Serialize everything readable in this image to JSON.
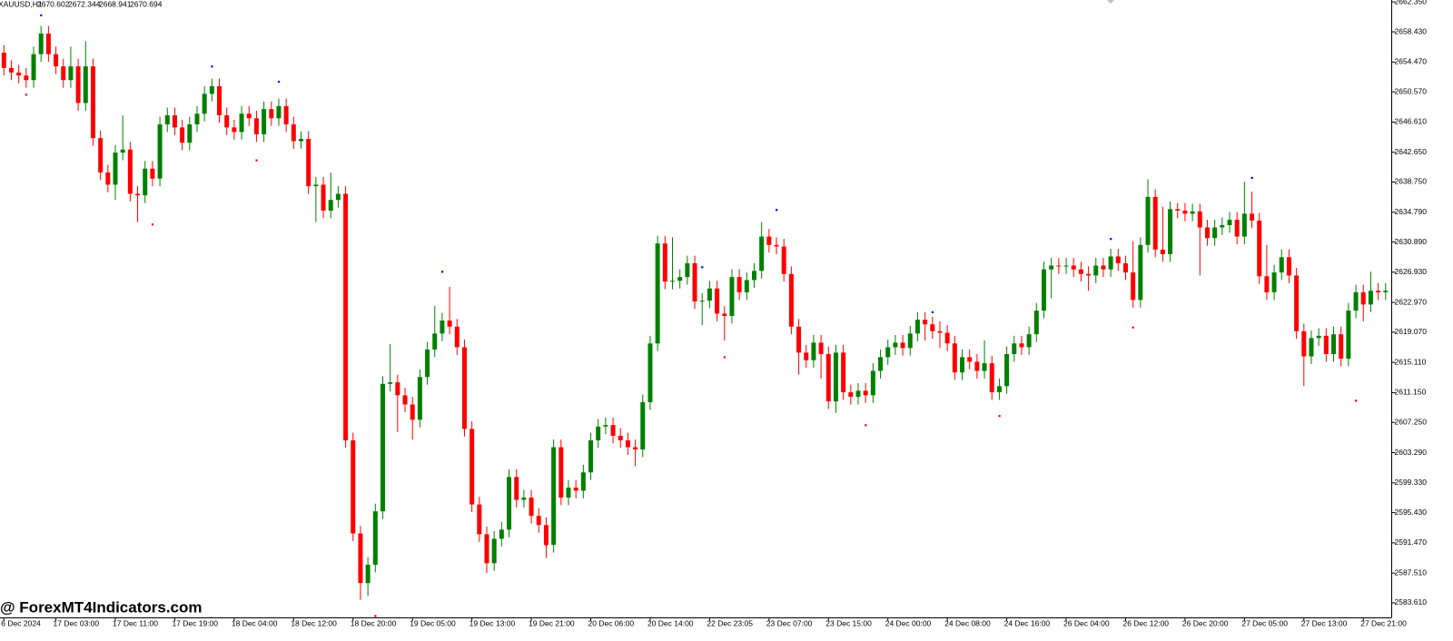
{
  "chart_data": {
    "type": "candlestick",
    "title": "XAUUSD,H1",
    "quote": {
      "open": 2670.602,
      "high": 2672.344,
      "low": 2668.941,
      "close": 2670.694
    },
    "watermark": "@ ForexMT4Indicators.com",
    "up_color": "#008000",
    "down_color": "#ff0000",
    "ylim": [
      2581.7,
      2662.6
    ],
    "yticks": [
      {
        "value": 2662.35,
        "label": "2662.350"
      },
      {
        "value": 2658.43,
        "label": "2658.430"
      },
      {
        "value": 2654.47,
        "label": "2654.470"
      },
      {
        "value": 2650.57,
        "label": "2650.570"
      },
      {
        "value": 2646.61,
        "label": "2646.610"
      },
      {
        "value": 2642.65,
        "label": "2642.650"
      },
      {
        "value": 2638.75,
        "label": "2638.750"
      },
      {
        "value": 2634.79,
        "label": "2634.790"
      },
      {
        "value": 2630.89,
        "label": "2630.890"
      },
      {
        "value": 2626.93,
        "label": "2626.930"
      },
      {
        "value": 2622.97,
        "label": "2622.970"
      },
      {
        "value": 2619.07,
        "label": "2619.070"
      },
      {
        "value": 2615.11,
        "label": "2615.110"
      },
      {
        "value": 2611.15,
        "label": "2611.150"
      },
      {
        "value": 2607.25,
        "label": "2607.250"
      },
      {
        "value": 2603.29,
        "label": "2603.290"
      },
      {
        "value": 2599.33,
        "label": "2599.330"
      },
      {
        "value": 2595.43,
        "label": "2595.430"
      },
      {
        "value": 2591.47,
        "label": "2591.470"
      },
      {
        "value": 2587.51,
        "label": "2587.510"
      },
      {
        "value": 2583.61,
        "label": "2583.610"
      }
    ],
    "categories": [
      "6 Dec 2024",
      null,
      null,
      null,
      null,
      null,
      null,
      "17 Dec 03:00",
      null,
      null,
      null,
      null,
      null,
      null,
      null,
      "17 Dec 11:00",
      null,
      null,
      null,
      null,
      null,
      null,
      null,
      "17 Dec 19:00",
      null,
      null,
      null,
      null,
      null,
      null,
      null,
      "18 Dec 04:00",
      null,
      null,
      null,
      null,
      null,
      null,
      null,
      "18 Dec 12:00",
      null,
      null,
      null,
      null,
      null,
      null,
      null,
      "18 Dec 20:00",
      null,
      null,
      null,
      null,
      null,
      null,
      null,
      "19 Dec 05:00",
      null,
      null,
      null,
      null,
      null,
      null,
      null,
      "19 Dec 13:00",
      null,
      null,
      null,
      null,
      null,
      null,
      null,
      "19 Dec 21:00",
      null,
      null,
      null,
      null,
      null,
      null,
      null,
      "20 Dec 06:00",
      null,
      null,
      null,
      null,
      null,
      null,
      null,
      "20 Dec 14:00",
      null,
      null,
      null,
      null,
      null,
      null,
      null,
      "22 Dec 23:05",
      null,
      null,
      null,
      null,
      null,
      null,
      null,
      "23 Dec 07:00",
      null,
      null,
      null,
      null,
      null,
      null,
      null,
      "23 Dec 15:00",
      null,
      null,
      null,
      null,
      null,
      null,
      null,
      "24 Dec 00:00",
      null,
      null,
      null,
      null,
      null,
      null,
      null,
      "24 Dec 08:00",
      null,
      null,
      null,
      null,
      null,
      null,
      null,
      "24 Dec 16:00",
      null,
      null,
      null,
      null,
      null,
      null,
      null,
      "26 Dec 04:00",
      null,
      null,
      null,
      null,
      null,
      null,
      null,
      "26 Dec 12:00",
      null,
      null,
      null,
      null,
      null,
      null,
      null,
      "26 Dec 20:00",
      null,
      null,
      null,
      null,
      null,
      null,
      null,
      "27 Dec 05:00",
      null,
      null,
      null,
      null,
      null,
      null,
      null,
      "27 Dec 13:00",
      null,
      null,
      null,
      null,
      null,
      null,
      null,
      "27 Dec 21:00",
      null,
      null,
      null
    ],
    "open": [
      2655.7,
      2653.7,
      2653.1,
      2652.7,
      2652.1,
      2655.5,
      2658.2,
      2655.5,
      2653.9,
      2652.1,
      2653.9,
      2649.1,
      2653.9,
      2644.5,
      2640.0,
      2638.4,
      2642.6,
      2643.0,
      2637.2,
      2637.0,
      2640.5,
      2639.2,
      2646.3,
      2647.5,
      2645.9,
      2643.9,
      2646.3,
      2647.7,
      2650.3,
      2651.3,
      2647.5,
      2645.9,
      2645.3,
      2647.7,
      2647.1,
      2645.0,
      2648.3,
      2647.1,
      2648.7,
      2646.3,
      2644.1,
      2644.4,
      2638.2,
      2638.4,
      2635.0,
      2636.4,
      2637.2,
      2604.9,
      2592.7,
      2586.2,
      2588.6,
      2595.6,
      2612.3,
      2612.5,
      2610.8,
      2609.6,
      2607.6,
      2613.2,
      2616.8,
      2618.9,
      2620.6,
      2619.8,
      2617.1,
      2606.4,
      2596.5,
      2592.6,
      2588.8,
      2592.0,
      2593.2,
      2600.1,
      2597.1,
      2597.4,
      2595.0,
      2593.8,
      2591.2,
      2604.0,
      2597.4,
      2598.7,
      2598.3,
      2600.7,
      2604.9,
      2606.7,
      2606.9,
      2605.5,
      2604.9,
      2604.0,
      2603.7,
      2609.9,
      2617.6,
      2630.7,
      2625.7,
      2625.8,
      2626.3,
      2628.1,
      2623.1,
      2623.2,
      2624.8,
      2621.5,
      2621.2,
      2626.3,
      2624.3,
      2625.9,
      2627.1,
      2631.6,
      2630.5,
      2630.3,
      2626.7,
      2619.8,
      2616.4,
      2615.4,
      2617.7,
      2616.2,
      2610.0,
      2616.4,
      2611.2,
      2610.6,
      2611.4,
      2610.8,
      2614.0,
      2615.8,
      2617.1,
      2617.7,
      2617.0,
      2618.9,
      2620.7,
      2620.1,
      2619.2,
      2619.0,
      2617.6,
      2613.8,
      2615.8,
      2615.2,
      2614.0,
      2615.0,
      2611.2,
      2612.0,
      2616.2,
      2617.6,
      2617.1,
      2618.8,
      2621.9,
      2627.3,
      2627.8,
      2627.7,
      2627.8,
      2627.3,
      2626.7,
      2626.5,
      2627.8,
      2627.3,
      2629.0,
      2628.1,
      2626.9,
      2623.3,
      2630.5,
      2636.8,
      2629.9,
      2629.3,
      2635.2,
      2635.0,
      2634.6,
      2634.9,
      2632.8,
      2631.4,
      2632.8,
      2633.1,
      2633.8,
      2631.6,
      2634.6,
      2633.7,
      2626.4,
      2624.3,
      2626.9,
      2628.9,
      2626.5,
      2619.2,
      2615.9,
      2618.3,
      2618.6,
      2616.2,
      2618.8,
      2615.6,
      2621.9,
      2624.3,
      2622.7,
      2624.5,
      2624.3
    ],
    "high": [
      2656.7,
      2654.7,
      2654.1,
      2653.7,
      2656.5,
      2659.2,
      2659.2,
      2656.5,
      2654.9,
      2656.5,
      2654.9,
      2657.2,
      2654.9,
      2645.5,
      2641.0,
      2643.6,
      2647.5,
      2644.0,
      2638.2,
      2641.5,
      2641.5,
      2647.3,
      2648.5,
      2648.5,
      2646.9,
      2647.3,
      2648.7,
      2651.3,
      2652.3,
      2652.3,
      2648.5,
      2646.9,
      2648.7,
      2648.7,
      2648.1,
      2649.3,
      2649.3,
      2649.7,
      2649.7,
      2647.3,
      2645.4,
      2645.4,
      2639.4,
      2639.4,
      2640.0,
      2638.2,
      2638.2,
      2605.9,
      2593.7,
      2589.6,
      2596.6,
      2613.3,
      2617.5,
      2613.5,
      2611.8,
      2610.6,
      2614.2,
      2617.8,
      2622.5,
      2621.6,
      2625.0,
      2620.8,
      2618.1,
      2607.4,
      2597.5,
      2593.6,
      2593.0,
      2594.2,
      2601.1,
      2601.1,
      2598.4,
      2598.4,
      2596.0,
      2594.8,
      2605.0,
      2605.0,
      2599.7,
      2599.7,
      2601.7,
      2605.9,
      2607.7,
      2607.9,
      2607.9,
      2606.5,
      2605.9,
      2605.0,
      2610.9,
      2618.6,
      2631.7,
      2631.7,
      2631.5,
      2627.3,
      2629.1,
      2629.1,
      2624.2,
      2625.8,
      2625.8,
      2622.5,
      2627.3,
      2627.3,
      2626.9,
      2628.1,
      2633.5,
      2632.6,
      2631.5,
      2631.3,
      2627.7,
      2620.8,
      2617.4,
      2618.7,
      2618.7,
      2617.2,
      2617.4,
      2617.4,
      2612.2,
      2612.4,
      2612.4,
      2615.0,
      2616.8,
      2618.1,
      2618.7,
      2618.7,
      2619.9,
      2621.7,
      2621.7,
      2621.1,
      2620.5,
      2620.0,
      2618.6,
      2616.8,
      2616.8,
      2616.2,
      2618.0,
      2616.0,
      2613.0,
      2617.2,
      2618.6,
      2618.6,
      2619.8,
      2622.9,
      2628.3,
      2628.8,
      2628.8,
      2628.8,
      2628.8,
      2628.3,
      2627.7,
      2628.8,
      2628.8,
      2630.0,
      2630.0,
      2629.1,
      2631.0,
      2631.5,
      2639.1,
      2637.8,
      2635.5,
      2636.2,
      2636.0,
      2636.0,
      2635.9,
      2635.9,
      2633.8,
      2633.8,
      2634.1,
      2634.8,
      2634.8,
      2638.8,
      2637.5,
      2634.7,
      2630.5,
      2627.9,
      2629.9,
      2629.9,
      2627.5,
      2620.2,
      2619.3,
      2619.6,
      2619.6,
      2619.8,
      2619.8,
      2622.9,
      2625.3,
      2625.3,
      2627.0,
      2625.5,
      2625.5
    ],
    "low": [
      2652.7,
      2652.1,
      2651.7,
      2651.1,
      2651.1,
      2654.5,
      2654.5,
      2652.9,
      2651.1,
      2651.1,
      2648.1,
      2648.1,
      2643.5,
      2639.0,
      2637.4,
      2636.4,
      2641.6,
      2636.2,
      2633.5,
      2636.0,
      2638.2,
      2638.2,
      2645.3,
      2644.9,
      2642.9,
      2642.9,
      2645.3,
      2646.7,
      2649.3,
      2646.5,
      2644.9,
      2644.3,
      2644.3,
      2646.1,
      2644.0,
      2644.0,
      2646.1,
      2646.1,
      2645.3,
      2643.1,
      2643.1,
      2637.2,
      2633.5,
      2634.0,
      2634.0,
      2635.4,
      2603.9,
      2591.7,
      2584.0,
      2584.5,
      2587.6,
      2594.6,
      2611.3,
      2606.0,
      2608.6,
      2605.0,
      2606.6,
      2612.2,
      2615.8,
      2617.9,
      2618.8,
      2616.1,
      2605.4,
      2595.5,
      2591.6,
      2587.5,
      2587.8,
      2591.0,
      2592.2,
      2596.1,
      2596.1,
      2594.0,
      2592.8,
      2589.5,
      2590.2,
      2596.4,
      2596.4,
      2597.3,
      2597.3,
      2599.7,
      2603.9,
      2605.7,
      2604.5,
      2603.9,
      2603.0,
      2601.5,
      2602.7,
      2608.9,
      2616.6,
      2624.7,
      2624.7,
      2624.8,
      2625.3,
      2622.1,
      2620.0,
      2622.2,
      2620.5,
      2618.0,
      2620.2,
      2623.3,
      2623.3,
      2624.9,
      2626.1,
      2629.5,
      2629.3,
      2625.7,
      2618.8,
      2613.5,
      2614.4,
      2614.4,
      2613.0,
      2609.0,
      2608.5,
      2610.2,
      2609.6,
      2609.6,
      2609.8,
      2609.8,
      2613.0,
      2614.8,
      2616.1,
      2616.0,
      2616.0,
      2617.9,
      2618.0,
      2618.2,
      2617.0,
      2616.6,
      2612.8,
      2612.8,
      2614.2,
      2613.0,
      2613.0,
      2610.2,
      2610.2,
      2611.0,
      2615.2,
      2616.1,
      2616.1,
      2617.8,
      2620.9,
      2623.5,
      2626.7,
      2626.7,
      2626.3,
      2625.7,
      2624.5,
      2625.5,
      2626.3,
      2626.3,
      2627.1,
      2625.9,
      2622.3,
      2622.3,
      2629.5,
      2628.9,
      2628.3,
      2628.3,
      2634.0,
      2633.6,
      2633.6,
      2626.5,
      2630.4,
      2630.4,
      2631.8,
      2632.1,
      2630.6,
      2630.6,
      2632.7,
      2625.4,
      2623.3,
      2623.3,
      2625.9,
      2625.5,
      2618.2,
      2612.0,
      2614.9,
      2617.3,
      2615.2,
      2615.2,
      2614.6,
      2614.6,
      2620.9,
      2620.5,
      2621.7,
      2623.3,
      2623.3
    ],
    "close": [
      2653.7,
      2653.1,
      2652.7,
      2652.1,
      2655.5,
      2658.2,
      2655.5,
      2653.9,
      2652.1,
      2653.9,
      2649.1,
      2653.9,
      2644.5,
      2640.0,
      2638.4,
      2642.6,
      2643.0,
      2637.2,
      2637.0,
      2640.5,
      2639.2,
      2646.3,
      2647.5,
      2645.9,
      2643.9,
      2646.3,
      2647.7,
      2650.3,
      2651.3,
      2647.5,
      2645.9,
      2645.3,
      2647.7,
      2647.1,
      2645.0,
      2648.3,
      2647.1,
      2648.7,
      2646.3,
      2644.1,
      2644.4,
      2638.2,
      2638.4,
      2635.0,
      2636.4,
      2637.2,
      2604.9,
      2592.7,
      2586.2,
      2588.6,
      2595.6,
      2612.3,
      2612.5,
      2610.8,
      2609.6,
      2607.6,
      2613.2,
      2616.8,
      2618.9,
      2620.6,
      2619.8,
      2617.1,
      2606.4,
      2596.5,
      2592.6,
      2588.8,
      2592.0,
      2593.2,
      2600.1,
      2597.1,
      2597.4,
      2595.0,
      2593.8,
      2591.2,
      2604.0,
      2597.4,
      2598.7,
      2598.3,
      2600.7,
      2604.9,
      2606.7,
      2606.9,
      2605.5,
      2604.9,
      2604.0,
      2603.7,
      2609.9,
      2617.6,
      2630.7,
      2625.7,
      2625.8,
      2626.3,
      2628.1,
      2623.1,
      2623.2,
      2624.8,
      2621.5,
      2621.2,
      2626.3,
      2624.3,
      2625.9,
      2627.1,
      2631.6,
      2630.5,
      2630.3,
      2626.7,
      2619.8,
      2616.4,
      2615.4,
      2617.7,
      2616.2,
      2610.0,
      2616.4,
      2611.2,
      2610.6,
      2611.4,
      2610.8,
      2614.0,
      2615.8,
      2617.1,
      2617.7,
      2617.0,
      2618.9,
      2620.7,
      2620.1,
      2619.2,
      2619.0,
      2617.6,
      2613.8,
      2615.8,
      2615.2,
      2614.0,
      2615.0,
      2611.2,
      2612.0,
      2616.2,
      2617.6,
      2617.1,
      2618.8,
      2621.9,
      2627.3,
      2627.8,
      2627.7,
      2627.8,
      2627.3,
      2626.7,
      2626.5,
      2627.8,
      2627.3,
      2629.0,
      2628.1,
      2626.9,
      2623.3,
      2630.5,
      2636.8,
      2629.9,
      2629.3,
      2635.2,
      2635.0,
      2634.6,
      2634.9,
      2632.8,
      2631.4,
      2632.8,
      2633.1,
      2633.8,
      2631.6,
      2634.6,
      2633.7,
      2626.4,
      2624.3,
      2626.9,
      2628.9,
      2626.5,
      2619.2,
      2615.9,
      2618.3,
      2618.6,
      2616.2,
      2618.8,
      2615.6,
      2621.9,
      2624.3,
      2622.7,
      2624.5,
      2624.3,
      2624.5
    ],
    "markers": [
      {
        "color": "#0000ff",
        "at": [
          5,
          28,
          37,
          59,
          94,
          104,
          125,
          149,
          168
        ],
        "values": [
          2660.6,
          2653.9,
          2651.9,
          2627.0,
          2627.6,
          2635.1,
          2621.7,
          2631.3,
          2639.3
        ]
      },
      {
        "color": "#ff0000",
        "at": [
          3,
          20,
          34,
          50,
          73,
          97,
          116,
          134,
          152,
          182
        ],
        "values": [
          2650.2,
          2633.2,
          2641.6,
          2581.9,
          2591.2,
          2615.8,
          2606.9,
          2608.1,
          2619.7,
          2610.1
        ]
      }
    ]
  }
}
